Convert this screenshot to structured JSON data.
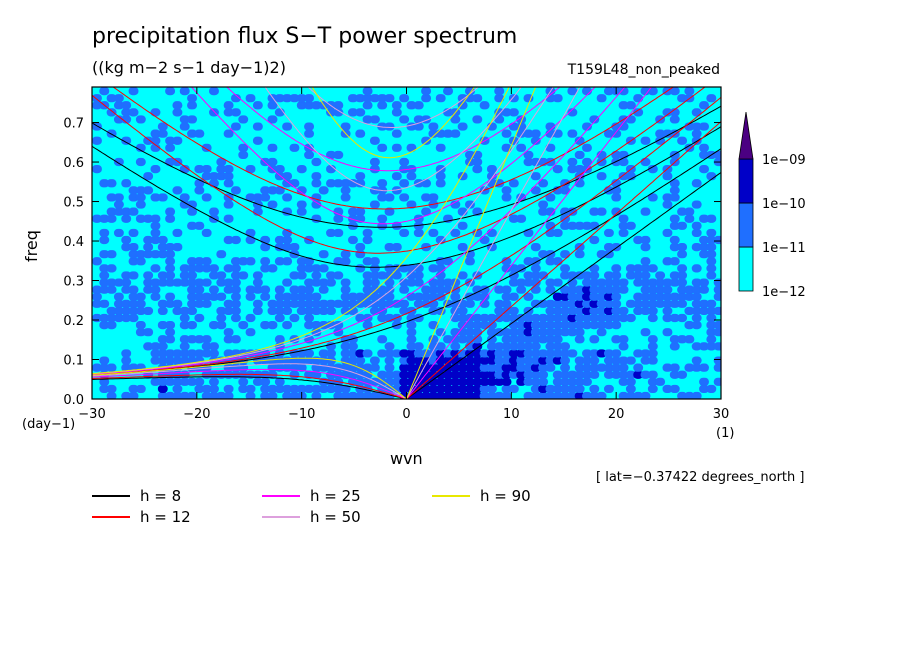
{
  "header": {
    "title": "precipitation flux S−T power spectrum",
    "units": "((kg m−2 s−1 day−1)2)",
    "run": "T159L48_non_peaked"
  },
  "axes": {
    "xlabel": "wvn",
    "ylabel": "freq",
    "xunit": "(1)",
    "yunit": "(day−1)",
    "lat_note": "[ lat=−0.37422 degrees_north ]"
  },
  "colors": {
    "fill_low": "#00ffff",
    "fill_mid": "#1f6fff",
    "fill_high": "#0000c8",
    "fill_top": "#4b0082",
    "h8": "#000000",
    "h12": "#ff0000",
    "h25": "#ff00ff",
    "h50": "#dda0dd",
    "h90": "#e8e800"
  },
  "chart_data": {
    "type": "heatmap",
    "title": "precipitation flux S−T power spectrum",
    "xlabel": "wvn",
    "ylabel": "freq",
    "xlim": [
      -30,
      30
    ],
    "ylim": [
      0,
      0.79
    ],
    "x_ticks": [
      -30,
      -20,
      -10,
      0,
      10,
      20,
      30
    ],
    "x_tick_labels": [
      "−30",
      "−20",
      "−10",
      "0",
      "10",
      "20",
      "30"
    ],
    "y_ticks": [
      0.0,
      0.1,
      0.2,
      0.3,
      0.4,
      0.5,
      0.6,
      0.7
    ],
    "y_tick_labels": [
      "0.0",
      "0.1",
      "0.2",
      "0.3",
      "0.4",
      "0.5",
      "0.6",
      "0.7"
    ],
    "colorbar": {
      "levels": [
        1e-12,
        1e-11,
        1e-10,
        1e-09
      ],
      "labels": [
        "1e−12",
        "1e−11",
        "1e−10",
        "1e−09"
      ],
      "colors": [
        "#00ffff",
        "#1f6fff",
        "#0000c8",
        "#4b0082"
      ]
    },
    "dispersion_curves": [
      {
        "name": "h =  8",
        "h": 8,
        "color": "#000000"
      },
      {
        "name": "h = 12",
        "h": 12,
        "color": "#ff0000"
      },
      {
        "name": "h = 25",
        "h": 25,
        "color": "#ff00ff"
      },
      {
        "name": "h = 50",
        "h": 50,
        "color": "#dda0dd"
      },
      {
        "name": "h = 90",
        "h": 90,
        "color": "#e8e800"
      }
    ],
    "legend_placement": "bottom-left"
  }
}
